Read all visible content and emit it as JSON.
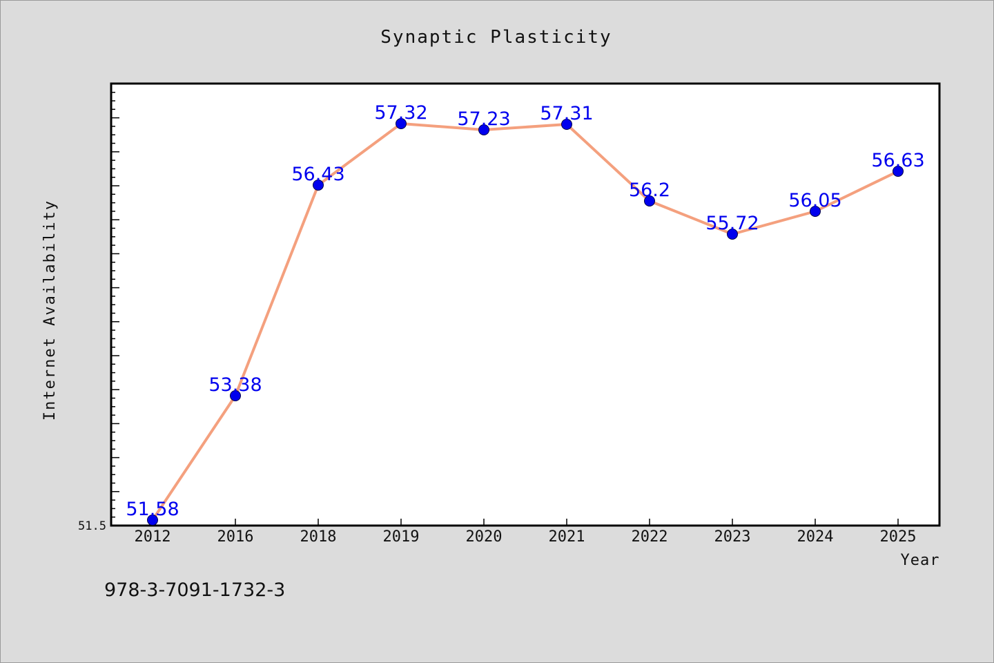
{
  "chart_data": {
    "type": "line",
    "title": "Synaptic Plasticity",
    "xlabel": "Year",
    "ylabel": "Internet Availability",
    "categories": [
      "2012",
      "2016",
      "2018",
      "2019",
      "2020",
      "2021",
      "2022",
      "2023",
      "2024",
      "2025"
    ],
    "series": [
      {
        "values": [
          51.58,
          53.38,
          56.43,
          57.32,
          57.23,
          57.31,
          56.2,
          55.72,
          56.05,
          56.63
        ],
        "data_labels": [
          "51.58",
          "53.38",
          "56.43",
          "57.32",
          "57.23",
          "57.31",
          "56.2",
          "55.72",
          "56.05",
          "56.63"
        ],
        "line_color": "#f4a07e",
        "marker_color": "#0000ee",
        "label_color": "#0000ee"
      }
    ],
    "ylim": [
      51.5,
      57.9
    ],
    "y_tick_labels": [
      "51.5"
    ],
    "grid": false,
    "legend": "none",
    "background": "#dcdcdc",
    "plot_background": "#ffffff"
  },
  "footer": {
    "code": "978-3-7091-1732-3"
  }
}
